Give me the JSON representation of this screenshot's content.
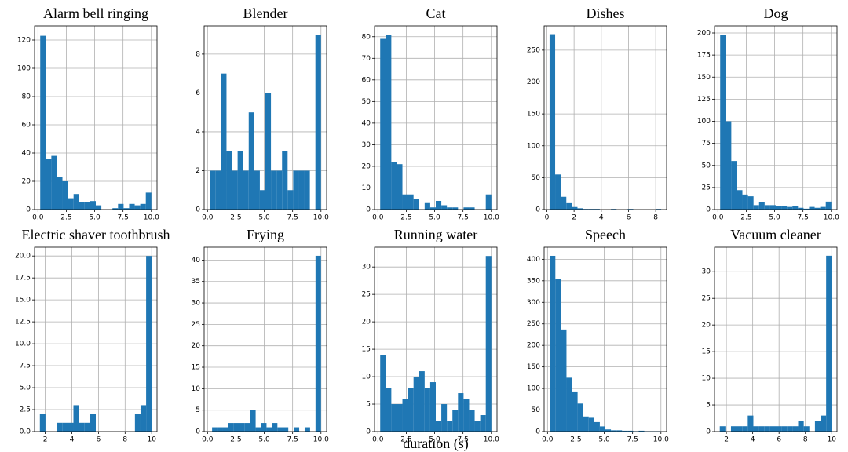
{
  "chart_data": [
    {
      "type": "histogram",
      "title": "Alarm bell ringing",
      "color": "#1f77b4",
      "grid": true,
      "bins": [
        0.2,
        0.69,
        1.18,
        1.67,
        2.16,
        2.65,
        3.14,
        3.63,
        4.12,
        4.61,
        5.1,
        5.59,
        6.08,
        6.57,
        7.06,
        7.55,
        8.04,
        8.53,
        9.02,
        9.51,
        10.0
      ],
      "counts": [
        123,
        36,
        38,
        23,
        20,
        8,
        11,
        5,
        5,
        6,
        3,
        0,
        0,
        1,
        4,
        1,
        4,
        3,
        4,
        12
      ],
      "xlim": [
        -0.3,
        10.5
      ],
      "ylim": [
        0,
        130
      ],
      "xticks": [
        {
          "value": 0,
          "label": "0.0"
        },
        {
          "value": 2.5,
          "label": "2.5"
        },
        {
          "value": 5,
          "label": "5.0"
        },
        {
          "value": 7.5,
          "label": "7.5"
        },
        {
          "value": 10,
          "label": "10.0"
        }
      ],
      "yticks": [
        0,
        20,
        40,
        60,
        80,
        100,
        120
      ]
    },
    {
      "type": "histogram",
      "title": "Blender",
      "color": "#1f77b4",
      "grid": true,
      "bins": [
        0.2,
        0.69,
        1.18,
        1.67,
        2.16,
        2.65,
        3.14,
        3.63,
        4.12,
        4.61,
        5.1,
        5.59,
        6.08,
        6.57,
        7.06,
        7.55,
        8.04,
        8.53,
        9.02,
        9.51,
        10.0
      ],
      "counts": [
        2,
        2,
        7,
        3,
        2,
        3,
        2,
        5,
        2,
        1,
        6,
        2,
        2,
        3,
        1,
        2,
        2,
        2,
        0,
        9
      ],
      "xlim": [
        -0.3,
        10.5
      ],
      "ylim": [
        0,
        9.45
      ],
      "xticks": [
        {
          "value": 0,
          "label": "0.0"
        },
        {
          "value": 2.5,
          "label": "2.5"
        },
        {
          "value": 5,
          "label": "5.0"
        },
        {
          "value": 7.5,
          "label": "7.5"
        },
        {
          "value": 10,
          "label": "10.0"
        }
      ],
      "yticks": [
        0,
        2,
        4,
        6,
        8
      ]
    },
    {
      "type": "histogram",
      "title": "Cat",
      "color": "#1f77b4",
      "grid": true,
      "bins": [
        0.2,
        0.69,
        1.18,
        1.67,
        2.16,
        2.65,
        3.14,
        3.63,
        4.12,
        4.61,
        5.1,
        5.59,
        6.08,
        6.57,
        7.06,
        7.55,
        8.04,
        8.53,
        9.02,
        9.51,
        10.0
      ],
      "counts": [
        79,
        81,
        22,
        21,
        7,
        7,
        5,
        0,
        3,
        1,
        4,
        2,
        1,
        1,
        0,
        1,
        1,
        0,
        0,
        7
      ],
      "xlim": [
        -0.3,
        10.5
      ],
      "ylim": [
        0,
        85
      ],
      "xticks": [
        {
          "value": 0,
          "label": "0.0"
        },
        {
          "value": 2.5,
          "label": "2.5"
        },
        {
          "value": 5,
          "label": "5.0"
        },
        {
          "value": 7.5,
          "label": "7.5"
        },
        {
          "value": 10,
          "label": "10.0"
        }
      ],
      "yticks": [
        0,
        10,
        20,
        30,
        40,
        50,
        60,
        70,
        80
      ]
    },
    {
      "type": "histogram",
      "title": "Dishes",
      "color": "#1f77b4",
      "grid": true,
      "bins": [
        0.2,
        0.61,
        1.02,
        1.43,
        1.84,
        2.25,
        2.66,
        3.07,
        3.48,
        3.89,
        4.3,
        4.71,
        5.12,
        5.53,
        5.94,
        6.35,
        6.76,
        7.17,
        7.58,
        7.99,
        8.4
      ],
      "counts": [
        275,
        55,
        20,
        10,
        4,
        2,
        1,
        1,
        1,
        0,
        0,
        1,
        0,
        0,
        1,
        0,
        0,
        0,
        0,
        1
      ],
      "xlim": [
        -0.2,
        8.8
      ],
      "ylim": [
        0,
        288
      ],
      "xticks": [
        0,
        2,
        4,
        6,
        8
      ],
      "yticks": [
        0,
        50,
        100,
        150,
        200,
        250
      ]
    },
    {
      "type": "histogram",
      "title": "Dog",
      "color": "#1f77b4",
      "grid": true,
      "bins": [
        0.2,
        0.69,
        1.18,
        1.67,
        2.16,
        2.65,
        3.14,
        3.63,
        4.12,
        4.61,
        5.1,
        5.59,
        6.08,
        6.57,
        7.06,
        7.55,
        8.04,
        8.53,
        9.02,
        9.51,
        10.0
      ],
      "counts": [
        198,
        100,
        55,
        22,
        17,
        15,
        5,
        8,
        5,
        5,
        4,
        4,
        3,
        4,
        2,
        1,
        3,
        2,
        3,
        9
      ],
      "xlim": [
        -0.3,
        10.5
      ],
      "ylim": [
        0,
        208
      ],
      "xticks": [
        {
          "value": 0,
          "label": "0.0"
        },
        {
          "value": 2.5,
          "label": "2.5"
        },
        {
          "value": 5,
          "label": "5.0"
        },
        {
          "value": 7.5,
          "label": "7.5"
        },
        {
          "value": 10,
          "label": "10.0"
        }
      ],
      "yticks": [
        0,
        25,
        50,
        75,
        100,
        125,
        150,
        175,
        200
      ]
    },
    {
      "type": "histogram",
      "title": "Electric shaver toothbrush",
      "color": "#1f77b4",
      "grid": true,
      "bins": [
        1.6,
        2.02,
        2.44,
        2.86,
        3.28,
        3.7,
        4.12,
        4.54,
        4.96,
        5.38,
        5.8,
        6.22,
        6.64,
        7.06,
        7.48,
        7.9,
        8.32,
        8.74,
        9.16,
        9.58,
        10.0
      ],
      "counts": [
        2,
        0,
        0,
        1,
        1,
        1,
        3,
        1,
        1,
        2,
        0,
        0,
        0,
        0,
        0,
        0,
        0,
        2,
        3,
        20
      ],
      "xlim": [
        1.2,
        10.4
      ],
      "ylim": [
        0,
        21
      ],
      "xticks": [
        2,
        4,
        6,
        8,
        10
      ],
      "yticks": [
        {
          "value": 0,
          "label": "0.0"
        },
        {
          "value": 2.5,
          "label": "2.5"
        },
        {
          "value": 5,
          "label": "5.0"
        },
        {
          "value": 7.5,
          "label": "7.5"
        },
        {
          "value": 10,
          "label": "10.0"
        },
        {
          "value": 12.5,
          "label": "12.5"
        },
        {
          "value": 15,
          "label": "15.0"
        },
        {
          "value": 17.5,
          "label": "17.5"
        },
        {
          "value": 20,
          "label": "20.0"
        }
      ]
    },
    {
      "type": "histogram",
      "title": "Frying",
      "color": "#1f77b4",
      "grid": true,
      "bins": [
        0.4,
        0.88,
        1.36,
        1.84,
        2.32,
        2.8,
        3.28,
        3.76,
        4.24,
        4.72,
        5.2,
        5.68,
        6.16,
        6.64,
        7.12,
        7.6,
        8.08,
        8.56,
        9.04,
        9.52,
        10.0
      ],
      "counts": [
        1,
        1,
        1,
        2,
        2,
        2,
        2,
        5,
        1,
        2,
        1,
        2,
        1,
        1,
        0,
        1,
        0,
        1,
        0,
        41
      ],
      "xlim": [
        -0.3,
        10.5
      ],
      "ylim": [
        0,
        43
      ],
      "xticks": [
        {
          "value": 0,
          "label": "0.0"
        },
        {
          "value": 2.5,
          "label": "2.5"
        },
        {
          "value": 5,
          "label": "5.0"
        },
        {
          "value": 7.5,
          "label": "7.5"
        },
        {
          "value": 10,
          "label": "10.0"
        }
      ],
      "yticks": [
        0,
        5,
        10,
        15,
        20,
        25,
        30,
        35,
        40
      ]
    },
    {
      "type": "histogram",
      "title": "Running water",
      "color": "#1f77b4",
      "grid": true,
      "xlabel": "duration (s)",
      "bins": [
        0.2,
        0.69,
        1.18,
        1.67,
        2.16,
        2.65,
        3.14,
        3.63,
        4.12,
        4.61,
        5.1,
        5.59,
        6.08,
        6.57,
        7.06,
        7.55,
        8.04,
        8.53,
        9.02,
        9.51,
        10.0
      ],
      "counts": [
        14,
        8,
        5,
        5,
        6,
        8,
        10,
        11,
        8,
        9,
        2,
        5,
        2,
        4,
        7,
        6,
        4,
        2,
        3,
        32
      ],
      "xlim": [
        -0.3,
        10.5
      ],
      "ylim": [
        0,
        33.6
      ],
      "xticks": [
        {
          "value": 0,
          "label": "0.0"
        },
        {
          "value": 2.5,
          "label": "2.5"
        },
        {
          "value": 5,
          "label": "5.0"
        },
        {
          "value": 7.5,
          "label": "7.5"
        },
        {
          "value": 10,
          "label": "10.0"
        }
      ],
      "yticks": [
        0,
        5,
        10,
        15,
        20,
        25,
        30
      ]
    },
    {
      "type": "histogram",
      "title": "Speech",
      "color": "#1f77b4",
      "grid": true,
      "bins": [
        0.2,
        0.69,
        1.18,
        1.67,
        2.16,
        2.65,
        3.14,
        3.63,
        4.12,
        4.61,
        5.1,
        5.59,
        6.08,
        6.57,
        7.06,
        7.55,
        8.04,
        8.53,
        9.02,
        9.51,
        10.0
      ],
      "counts": [
        408,
        355,
        237,
        125,
        93,
        65,
        35,
        32,
        22,
        12,
        5,
        3,
        3,
        2,
        2,
        1,
        2,
        1,
        1,
        1
      ],
      "xlim": [
        -0.3,
        10.5
      ],
      "ylim": [
        0,
        428
      ],
      "xticks": [
        {
          "value": 0,
          "label": "0.0"
        },
        {
          "value": 2.5,
          "label": "2.5"
        },
        {
          "value": 5,
          "label": "5.0"
        },
        {
          "value": 7.5,
          "label": "7.5"
        },
        {
          "value": 10,
          "label": "10.0"
        }
      ],
      "yticks": [
        0,
        50,
        100,
        150,
        200,
        250,
        300,
        350,
        400
      ]
    },
    {
      "type": "histogram",
      "title": "Vacuum cleaner",
      "color": "#1f77b4",
      "grid": true,
      "bins": [
        1.5,
        1.925,
        2.35,
        2.775,
        3.2,
        3.625,
        4.05,
        4.475,
        4.9,
        5.325,
        5.75,
        6.175,
        6.6,
        7.025,
        7.45,
        7.875,
        8.3,
        8.725,
        9.15,
        9.575,
        10.0
      ],
      "counts": [
        1,
        0,
        1,
        1,
        1,
        3,
        1,
        1,
        1,
        1,
        1,
        1,
        1,
        1,
        2,
        1,
        0,
        2,
        3,
        33
      ],
      "xlim": [
        1.1,
        10.4
      ],
      "ylim": [
        0,
        34.6
      ],
      "xticks": [
        2,
        4,
        6,
        8,
        10
      ],
      "yticks": [
        0,
        5,
        10,
        15,
        20,
        25,
        30
      ]
    }
  ]
}
